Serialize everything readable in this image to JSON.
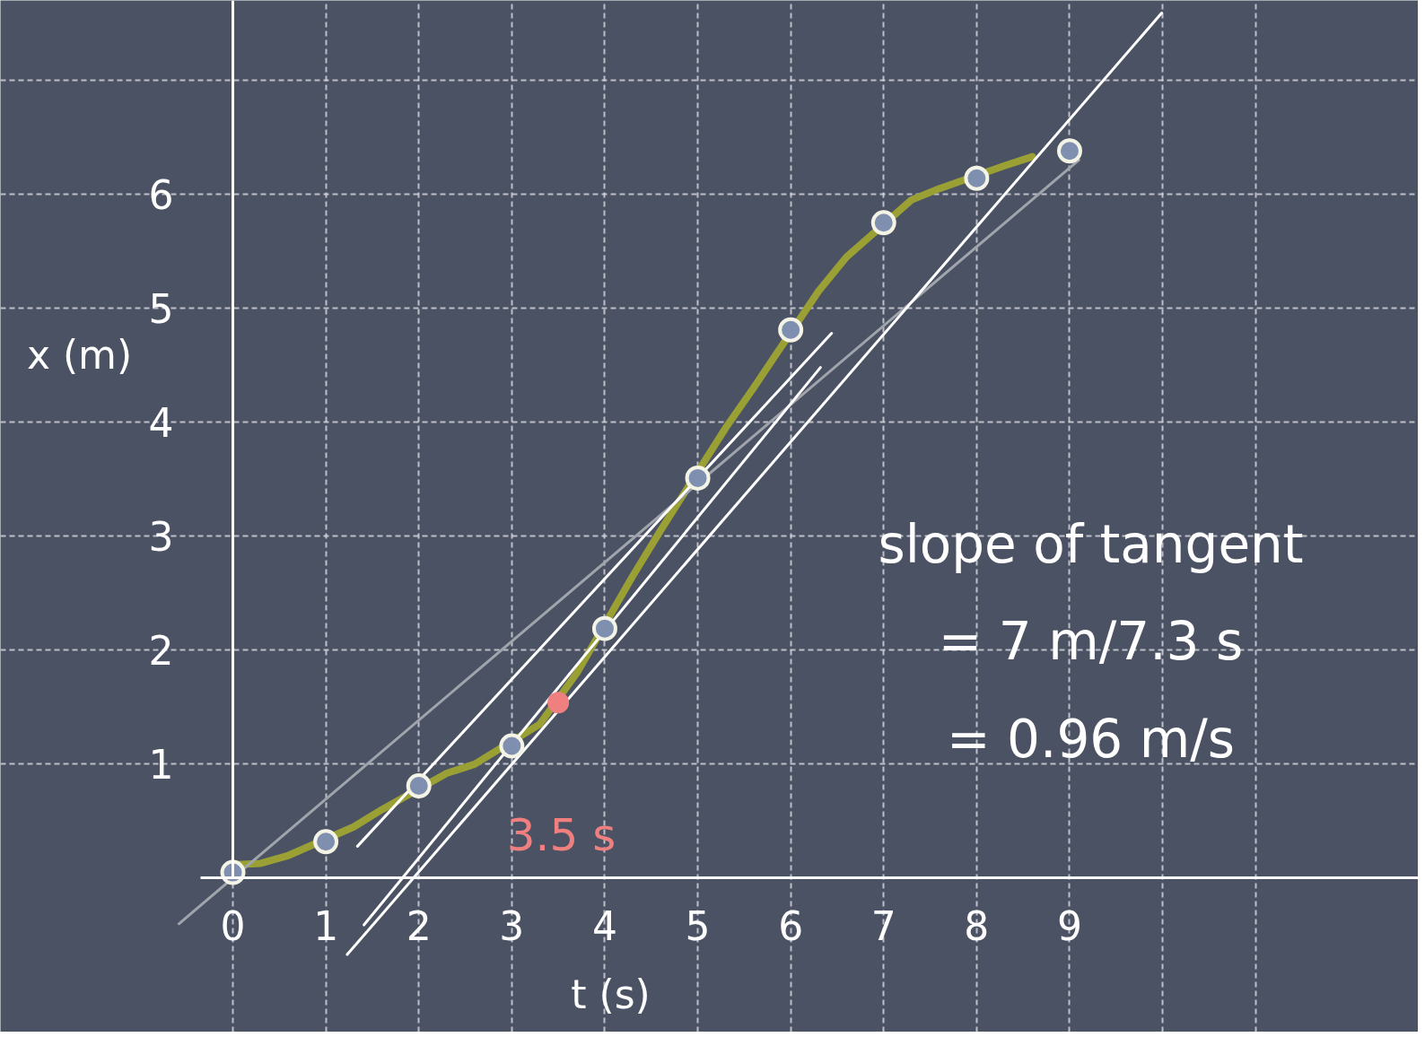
{
  "chart_data": {
    "type": "scatter",
    "xlabel": "t (s)",
    "ylabel": "x (m)",
    "xlim": [
      -2.5,
      12.75
    ],
    "ylim": [
      -1.35,
      7.7
    ],
    "xticks": [
      0,
      1,
      2,
      3,
      4,
      5,
      6,
      7,
      8,
      9,
      {
        "value": 10,
        "label": null
      },
      {
        "value": 11,
        "label": null
      }
    ],
    "yticks": [
      1,
      2,
      3,
      4,
      5,
      6,
      {
        "value": 7,
        "label": null
      }
    ],
    "grid": true,
    "marker": "circle",
    "series": [
      {
        "type": "line",
        "color": "#9aa034",
        "x": [
          0.05,
          0.3,
          0.6,
          1.3,
          1.6,
          2.3,
          2.6,
          3.3,
          3.7,
          4.3,
          4.6,
          5.3,
          5.6,
          6.3,
          6.6,
          7.3,
          7.6,
          8.3,
          8.6
        ],
        "values": [
          0.12,
          0.13,
          0.2,
          0.45,
          0.6,
          0.92,
          1.0,
          1.35,
          1.8,
          2.65,
          3.05,
          3.95,
          4.3,
          5.15,
          5.45,
          5.95,
          6.05,
          6.25,
          6.33
        ],
        "marker": "none"
      },
      {
        "type": "line",
        "color": "#a0a4ac",
        "x": [
          -0.58,
          9.1
        ],
        "values": [
          -0.4,
          6.3
        ],
        "marker": "none"
      },
      {
        "type": "line",
        "color": "#ffffff",
        "x": [
          1.34,
          6.44
        ],
        "values": [
          0.28,
          4.78
        ],
        "marker": "none"
      },
      {
        "type": "line",
        "color": "#ffffff",
        "x": [
          1.41,
          6.32
        ],
        "values": [
          -0.41,
          4.48
        ],
        "marker": "none"
      },
      {
        "type": "line",
        "color": "#ffffff",
        "x": [
          1.23,
          9.99
        ],
        "values": [
          -0.67,
          7.59
        ],
        "marker": "none"
      },
      {
        "color": "#7f8fb0",
        "x": [
          0,
          1,
          2,
          3,
          4,
          5,
          6,
          7,
          8,
          9
        ],
        "values": [
          0.05,
          0.32,
          0.81,
          1.16,
          2.19,
          3.51,
          4.81,
          5.75,
          6.14,
          6.38
        ]
      },
      {
        "color": "#f08080",
        "x": [
          3.5
        ],
        "values": [
          1.54
        ]
      }
    ],
    "annotations": [
      "3.5 s",
      "slope of tangent\n= 7 m/7.3 s\n= 0.96 m/s"
    ]
  }
}
